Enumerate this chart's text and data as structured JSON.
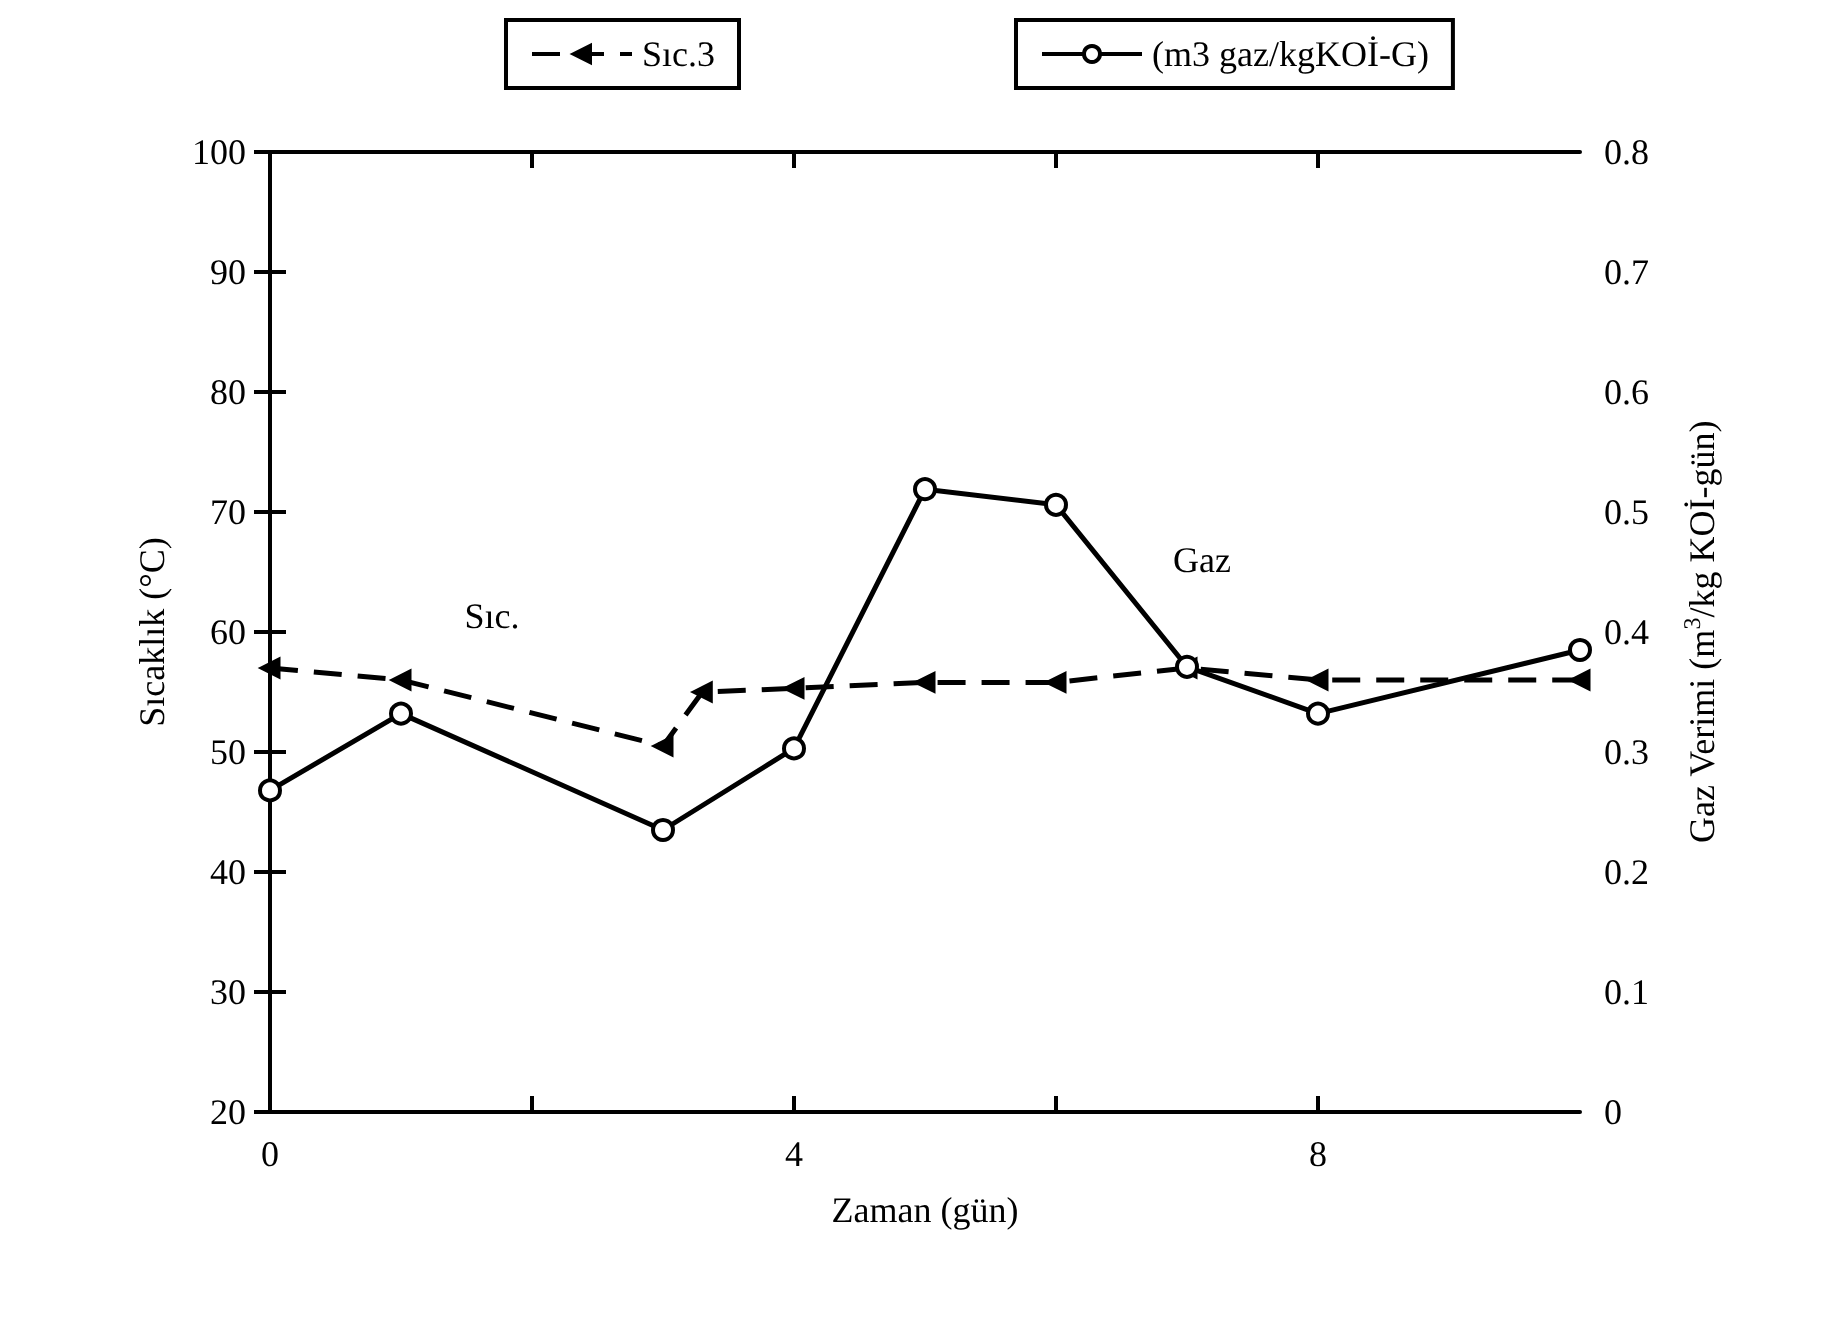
{
  "chart_data": {
    "type": "line",
    "xlabel": "Zaman (gün)",
    "ylabel": "Sıcaklık (°C)",
    "y2label": "Gaz Verimi (m$^{3}$/kg KOİ-gün)",
    "xlim": [
      0,
      10
    ],
    "xticks": [
      0,
      {
        "value": 2,
        "label": null
      },
      4,
      {
        "value": 6,
        "label": null
      },
      8
    ],
    "ylim": [
      20,
      100
    ],
    "yticks": [
      20,
      30,
      40,
      50,
      60,
      70,
      80,
      90,
      100
    ],
    "y2lim": [
      0,
      0.8
    ],
    "y2ticks": [
      0,
      0.1,
      0.2,
      0.3,
      0.4,
      0.5,
      0.6,
      0.7,
      0.8
    ],
    "grid": false,
    "legend": "top",
    "series": [
      {
        "name": "Sıc.3",
        "color": "#000000",
        "line_style": "dashed",
        "marker": "triangle",
        "x": [
          0,
          1,
          3,
          3.3,
          4,
          5,
          6,
          7,
          8,
          10
        ],
        "values": [
          57,
          56,
          50.5,
          55,
          55.3,
          55.8,
          55.8,
          57,
          56,
          56
        ]
      },
      {
        "name": "(m3 gaz/kgKOİ-G)",
        "color": "#000000",
        "line_style": "solid",
        "marker": "circle",
        "axis": "y2",
        "x": [
          0,
          1,
          3,
          4,
          5,
          6,
          7,
          8,
          10
        ],
        "values": [
          0.268,
          0.332,
          0.235,
          0.303,
          0.519,
          0.506,
          0.371,
          0.332,
          0.385
        ]
      }
    ],
    "annotations": [
      "Sıc.",
      "Gaz"
    ]
  }
}
